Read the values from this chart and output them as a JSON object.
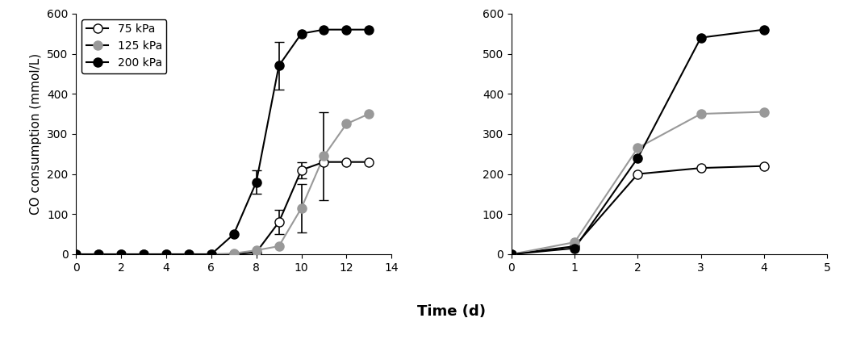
{
  "left": {
    "series": [
      {
        "label": "75 kPa",
        "markerfacecolor": "white",
        "markeredgecolor": "black",
        "linecolor": "black",
        "x": [
          0,
          1,
          2,
          3,
          4,
          5,
          6,
          7,
          8,
          9,
          10,
          11,
          12,
          13
        ],
        "y": [
          0,
          0,
          0,
          0,
          0,
          0,
          0,
          0,
          5,
          80,
          210,
          230,
          230,
          230
        ],
        "yerr": [
          null,
          null,
          null,
          null,
          null,
          null,
          null,
          null,
          null,
          30,
          20,
          null,
          null,
          null
        ]
      },
      {
        "label": "125 kPa",
        "markerfacecolor": "#999999",
        "markeredgecolor": "#999999",
        "linecolor": "#999999",
        "x": [
          0,
          1,
          2,
          3,
          4,
          5,
          6,
          7,
          8,
          9,
          10,
          11,
          12,
          13
        ],
        "y": [
          0,
          0,
          0,
          0,
          0,
          0,
          0,
          2,
          10,
          20,
          115,
          245,
          325,
          350
        ],
        "yerr": [
          null,
          null,
          null,
          null,
          null,
          null,
          null,
          null,
          null,
          null,
          60,
          110,
          null,
          null
        ]
      },
      {
        "label": "200 kPa",
        "markerfacecolor": "black",
        "markeredgecolor": "black",
        "linecolor": "black",
        "x": [
          0,
          1,
          2,
          3,
          4,
          5,
          6,
          7,
          8,
          9,
          10,
          11,
          12,
          13
        ],
        "y": [
          0,
          0,
          0,
          0,
          0,
          0,
          0,
          50,
          180,
          470,
          550,
          560,
          560,
          560
        ],
        "yerr": [
          null,
          null,
          null,
          null,
          null,
          null,
          null,
          null,
          30,
          60,
          null,
          null,
          null,
          null
        ]
      }
    ],
    "xlim": [
      0,
      14
    ],
    "ylim": [
      0,
      600
    ],
    "xticks": [
      0,
      2,
      4,
      6,
      8,
      10,
      12,
      14
    ],
    "yticks": [
      0,
      100,
      200,
      300,
      400,
      500,
      600
    ],
    "ylabel": "CO consumption (mmol/L)"
  },
  "right": {
    "series": [
      {
        "label": "75 kPa",
        "markerfacecolor": "white",
        "markeredgecolor": "black",
        "linecolor": "black",
        "x": [
          0,
          1,
          2,
          3,
          4
        ],
        "y": [
          0,
          20,
          200,
          215,
          220
        ]
      },
      {
        "label": "125 kPa",
        "markerfacecolor": "#999999",
        "markeredgecolor": "#999999",
        "linecolor": "#999999",
        "x": [
          0,
          1,
          2,
          3,
          4
        ],
        "y": [
          0,
          30,
          265,
          350,
          355
        ]
      },
      {
        "label": "200 kPa",
        "markerfacecolor": "black",
        "markeredgecolor": "black",
        "linecolor": "black",
        "x": [
          0,
          1,
          2,
          3,
          4
        ],
        "y": [
          0,
          15,
          240,
          540,
          560
        ]
      }
    ],
    "xlim": [
      0,
      5
    ],
    "ylim": [
      0,
      600
    ],
    "xticks": [
      0,
      1,
      2,
      3,
      4,
      5
    ],
    "yticks": [
      0,
      100,
      200,
      300,
      400,
      500,
      600
    ]
  },
  "xlabel": "Time (d)",
  "marker_size": 8,
  "linewidth": 1.5,
  "capsize": 4,
  "elinewidth": 1.2,
  "legend_labels": [
    "75 kPa",
    "125 kPa",
    "200 kPa"
  ],
  "legend_markerfacecolors": [
    "white",
    "#999999",
    "black"
  ],
  "legend_markeredgecolors": [
    "black",
    "#999999",
    "black"
  ]
}
